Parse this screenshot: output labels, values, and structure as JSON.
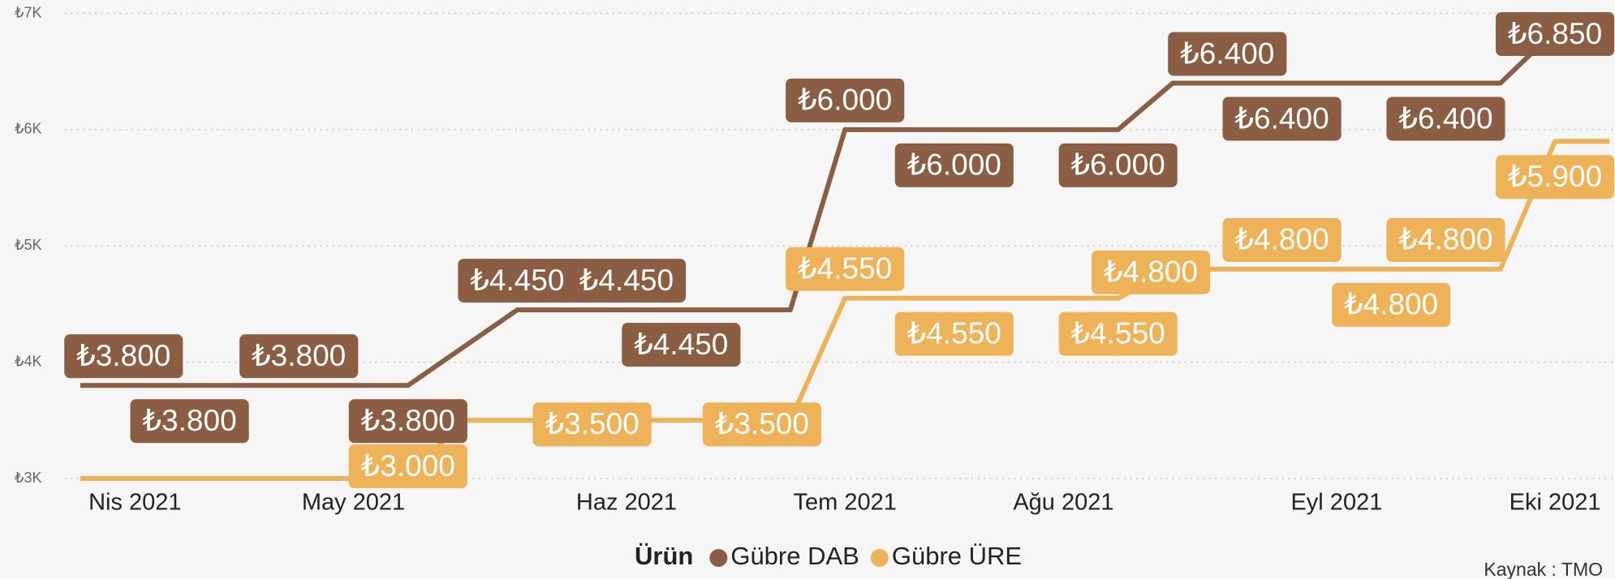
{
  "chart_data": {
    "type": "line",
    "categories": [
      null,
      "Nis 2021",
      null,
      null,
      null,
      "May 2021",
      null,
      null,
      null,
      null,
      "Haz 2021",
      null,
      null,
      null,
      "Tem 2021",
      null,
      null,
      null,
      "Ağu 2021",
      null,
      null,
      null,
      null,
      "Eyl 2021",
      null,
      null,
      null,
      "Eki 2021",
      null
    ],
    "series": [
      {
        "name": "Gübre DAB",
        "color": "#8b5e43",
        "values": [
          3800,
          3800,
          3800,
          3800,
          3800,
          3800,
          3800,
          4125,
          4450,
          4450,
          4450,
          4450,
          4450,
          4450,
          6000,
          6000,
          6000,
          6000,
          6000,
          6000,
          6400,
          6400,
          6400,
          6400,
          6400,
          6400,
          6400,
          6850,
          null
        ],
        "value_labels": [
          null,
          "₺3.800",
          "₺3.800",
          null,
          "₺3.800",
          null,
          "₺3.800",
          null,
          "₺4.450",
          null,
          "₺4.450",
          "₺4.450",
          null,
          null,
          "₺6.000",
          null,
          "₺6.000",
          null,
          null,
          "₺6.000",
          null,
          "₺6.400",
          "₺6.400",
          null,
          null,
          "₺6.400",
          null,
          "₺6.850",
          null
        ]
      },
      {
        "name": "Gübre ÜRE",
        "color": "#eeb258",
        "values": [
          3000,
          3000,
          3000,
          3000,
          3000,
          3000,
          3000,
          3500,
          3500,
          3500,
          3500,
          3500,
          3500,
          3500,
          4550,
          4550,
          4550,
          4550,
          4550,
          4550,
          4800,
          4800,
          4800,
          4800,
          4800,
          4800,
          4800,
          5900,
          5900
        ],
        "value_labels": [
          null,
          null,
          null,
          null,
          null,
          null,
          "₺3.000",
          null,
          null,
          "₺3.500",
          null,
          null,
          null,
          "₺3.500",
          "₺4.550",
          null,
          "₺4.550",
          null,
          null,
          "₺4.550",
          "₺4.800",
          null,
          "₺4.800",
          null,
          "₺4.800",
          "₺4.800",
          null,
          "₺5.900",
          null
        ]
      }
    ],
    "ylim": [
      3000,
      7000
    ],
    "yticks": [
      {
        "value": 3000,
        "label": "₺3K"
      },
      {
        "value": 4000,
        "label": "₺4K"
      },
      {
        "value": 5000,
        "label": "₺5K"
      },
      {
        "value": 6000,
        "label": "₺6K"
      },
      {
        "value": 7000,
        "label": "₺7K"
      }
    ],
    "grid": true,
    "legend_title": "Ürün",
    "legend_position": "bottom",
    "source": "Kaynak : TMO"
  }
}
